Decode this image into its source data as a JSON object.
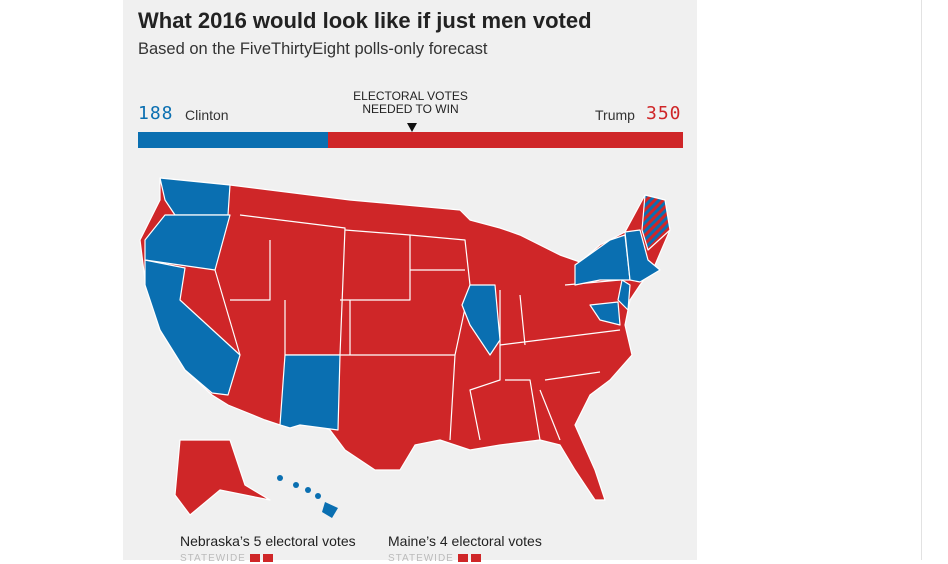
{
  "title": "What 2016 would look like if just men voted",
  "subtitle": "Based on the FiveThirtyEight polls-only forecast",
  "clinton": {
    "label": "Clinton",
    "votes": "188",
    "color": "#0a6fb1"
  },
  "trump": {
    "label": "Trump",
    "votes": "350",
    "color": "#cf2628"
  },
  "threshold_label": "ELECTORAL VOTES NEEDED TO WIN",
  "threshold_votes": 270,
  "total_votes": 538,
  "map": {
    "clinton_states": [
      "WA",
      "OR",
      "CA",
      "NM",
      "IL",
      "NY",
      "VT",
      "MA",
      "CT",
      "RI",
      "NJ",
      "DE",
      "MD",
      "DC",
      "HI"
    ],
    "split_state": "ME",
    "trump_color": "#cf2628",
    "clinton_color": "#0a6fb1"
  },
  "footer": {
    "nebraska": "Nebraska’s 5 electoral votes",
    "maine": "Maine’s 4 electoral votes",
    "statewide": "STATEWIDE"
  }
}
